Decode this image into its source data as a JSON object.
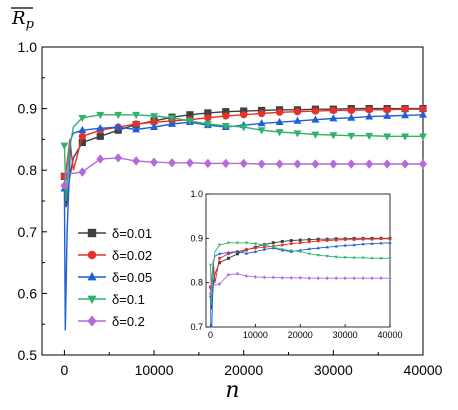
{
  "chart_data": [
    {
      "type": "line",
      "name": "main",
      "title": "",
      "ylabel": "R_p",
      "xlabel": "n",
      "xlim": [
        -2500,
        40000
      ],
      "ylim": [
        0.5,
        1.0
      ],
      "xticks": [
        0,
        10000,
        20000,
        30000,
        40000
      ],
      "xtick_labels": [
        "0",
        "10000",
        "20000",
        "30000",
        "40000"
      ],
      "yticks": [
        0.5,
        0.6,
        0.7,
        0.8,
        0.9,
        1.0
      ],
      "ytick_labels": [
        "0.5",
        "0.6",
        "0.7",
        "0.8",
        "0.9",
        "1.0"
      ],
      "legend_position": "left",
      "series": [
        {
          "name": "δ=0.01",
          "color": "#404040",
          "marker": "square",
          "x": [
            0,
            200,
            600,
            1000,
            2000,
            4000,
            6000,
            8000,
            10000,
            12000,
            14000,
            16000,
            18000,
            20000,
            22000,
            24000,
            26000,
            28000,
            30000,
            32000,
            34000,
            36000,
            38000,
            40000
          ],
          "y": [
            0.79,
            0.74,
            0.79,
            0.82,
            0.845,
            0.855,
            0.865,
            0.874,
            0.88,
            0.886,
            0.89,
            0.893,
            0.895,
            0.896,
            0.897,
            0.898,
            0.898,
            0.899,
            0.899,
            0.9,
            0.9,
            0.9,
            0.9,
            0.9
          ]
        },
        {
          "name": "δ=0.02",
          "color": "#e8302a",
          "marker": "circle",
          "x": [
            0,
            200,
            600,
            1000,
            2000,
            4000,
            6000,
            8000,
            10000,
            12000,
            14000,
            16000,
            18000,
            20000,
            22000,
            24000,
            26000,
            28000,
            30000,
            32000,
            34000,
            36000,
            38000,
            40000
          ],
          "y": [
            0.79,
            0.8,
            0.85,
            0.8,
            0.855,
            0.865,
            0.87,
            0.875,
            0.878,
            0.88,
            0.882,
            0.885,
            0.888,
            0.89,
            0.892,
            0.894,
            0.895,
            0.896,
            0.897,
            0.897,
            0.898,
            0.898,
            0.899,
            0.899
          ]
        },
        {
          "name": "δ=0.05",
          "color": "#1f5fd6",
          "marker": "triangle-up",
          "x": [
            0,
            100,
            300,
            700,
            1000,
            2000,
            4000,
            6000,
            8000,
            10000,
            12000,
            14000,
            16000,
            18000,
            20000,
            22000,
            24000,
            26000,
            28000,
            30000,
            32000,
            34000,
            36000,
            38000,
            40000
          ],
          "y": [
            0.77,
            0.54,
            0.7,
            0.85,
            0.86,
            0.865,
            0.868,
            0.87,
            0.866,
            0.87,
            0.875,
            0.878,
            0.873,
            0.87,
            0.873,
            0.876,
            0.878,
            0.88,
            0.882,
            0.884,
            0.885,
            0.887,
            0.888,
            0.889,
            0.89
          ]
        },
        {
          "name": "δ=0.1",
          "color": "#2fb36c",
          "marker": "triangle-down",
          "x": [
            0,
            200,
            500,
            1000,
            2000,
            4000,
            6000,
            8000,
            10000,
            12000,
            14000,
            16000,
            18000,
            20000,
            22000,
            24000,
            26000,
            28000,
            30000,
            32000,
            34000,
            36000,
            38000,
            40000
          ],
          "y": [
            0.84,
            0.75,
            0.83,
            0.87,
            0.885,
            0.89,
            0.89,
            0.89,
            0.888,
            0.885,
            0.88,
            0.875,
            0.872,
            0.87,
            0.865,
            0.862,
            0.86,
            0.858,
            0.857,
            0.856,
            0.856,
            0.855,
            0.855,
            0.855
          ]
        },
        {
          "name": "δ=0.2",
          "color": "#b36bd8",
          "marker": "diamond",
          "x": [
            0,
            200,
            500,
            1000,
            2000,
            4000,
            6000,
            8000,
            10000,
            12000,
            14000,
            16000,
            18000,
            20000,
            22000,
            24000,
            26000,
            28000,
            30000,
            32000,
            34000,
            36000,
            38000,
            40000
          ],
          "y": [
            0.775,
            0.8,
            0.795,
            0.795,
            0.797,
            0.818,
            0.82,
            0.815,
            0.813,
            0.812,
            0.812,
            0.811,
            0.811,
            0.811,
            0.81,
            0.81,
            0.81,
            0.81,
            0.81,
            0.81,
            0.81,
            0.81,
            0.81,
            0.81
          ]
        }
      ]
    },
    {
      "type": "line",
      "name": "inset",
      "title": "",
      "xlim": [
        -1000,
        40000
      ],
      "ylim": [
        0.7,
        1.0
      ],
      "xticks": [
        0,
        10000,
        20000,
        30000,
        40000
      ],
      "xtick_labels": [
        "0",
        "10000",
        "20000",
        "30000",
        "40000"
      ],
      "yticks": [
        0.7,
        0.8,
        0.9,
        1.0
      ],
      "ytick_labels": [
        "0.7",
        "0.8",
        "0.9",
        "1.0"
      ],
      "series_ref": "same as main"
    }
  ]
}
